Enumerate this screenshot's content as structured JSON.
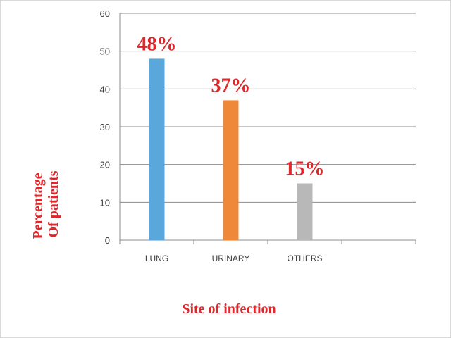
{
  "chart_data": {
    "type": "bar",
    "categories": [
      "LUNG",
      "URINARY",
      "OTHERS",
      ""
    ],
    "values": [
      48,
      37,
      15,
      null
    ],
    "data_labels": [
      "48%",
      "37%",
      "15%",
      ""
    ],
    "colors": [
      "#5aa7dc",
      "#f0883a",
      "#b8b8b8"
    ],
    "xlabel": "Site of infection",
    "ylabel_lines": [
      "Percentage",
      "Of patients"
    ],
    "ylim": [
      0,
      60
    ],
    "yticks": [
      0,
      10,
      20,
      30,
      40,
      50,
      60
    ],
    "grid": true,
    "legend": "none"
  }
}
